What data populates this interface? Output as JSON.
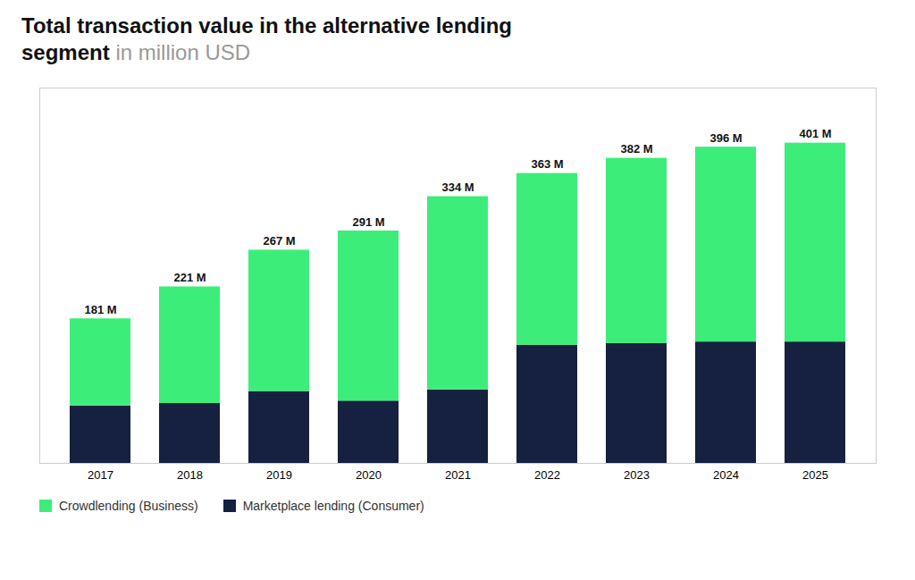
{
  "chart_data": {
    "type": "bar",
    "stacked": true,
    "title": "Total transaction value in the alternative lending segment",
    "subtitle": "in million USD",
    "categories": [
      "2017",
      "2018",
      "2019",
      "2020",
      "2021",
      "2022",
      "2023",
      "2024",
      "2025"
    ],
    "series": [
      {
        "name": "Marketplace lending (Consumer)",
        "color": "#162040",
        "values": [
          72,
          75,
          90,
          78,
          92,
          148,
          150,
          152,
          152
        ]
      },
      {
        "name": "Crowdlending (Business)",
        "color": "#3DED7A",
        "values": [
          109,
          146,
          177,
          213,
          242,
          215,
          232,
          244,
          249
        ]
      }
    ],
    "totals": [
      181,
      221,
      267,
      291,
      334,
      363,
      382,
      396,
      401
    ],
    "total_labels": [
      "181 M",
      "221 M",
      "267 M",
      "291 M",
      "334 M",
      "363 M",
      "382 M",
      "396 M",
      "401 M"
    ],
    "ylim": [
      0,
      470
    ],
    "tick_labels": "x",
    "grid": false,
    "legend": "lower left"
  }
}
